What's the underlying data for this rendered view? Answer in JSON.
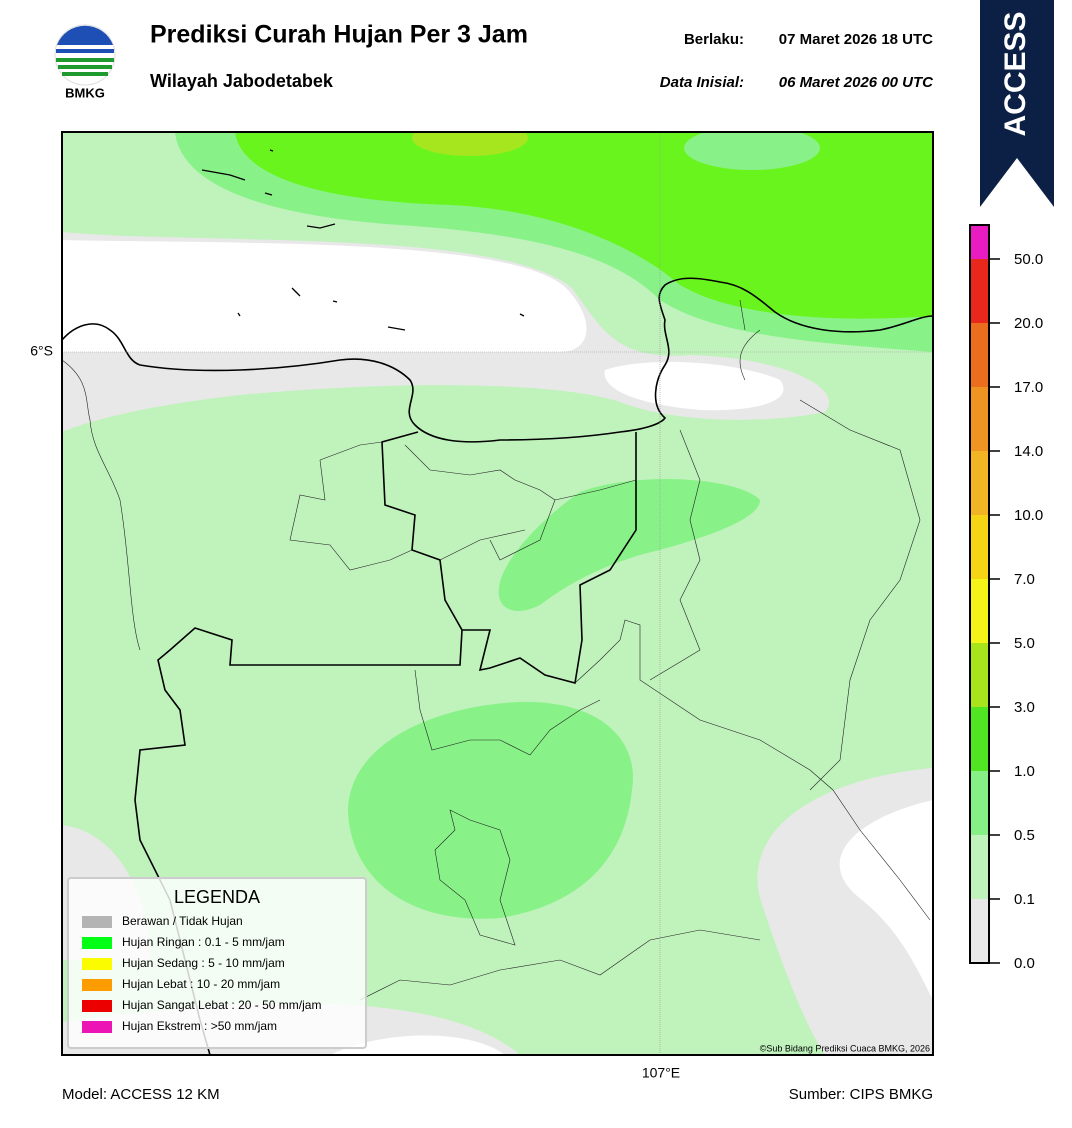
{
  "header": {
    "logo_text": "BMKG",
    "title": "Prediksi Curah Hujan Per 3 Jam",
    "subtitle": "Wilayah Jabodetabek",
    "valid_label": "Berlaku:",
    "valid_value": "07 Maret 2026 18 UTC",
    "init_label": "Data Inisial:",
    "init_value": "06 Maret 2026 00 UTC"
  },
  "badge": "ACCESS",
  "map": {
    "lat_label": "6°S",
    "lon_label": "107°E",
    "credit": "©Sub Bidang Prediksi Cuaca BMKG, 2026"
  },
  "legend": {
    "title": "LEGENDA",
    "items": [
      {
        "label": "Berawan / Tidak Hujan",
        "color": "#b4b4b4"
      },
      {
        "label": "Hujan Ringan : 0.1 - 5 mm/jam",
        "color": "#00ff14"
      },
      {
        "label": "Hujan Sedang : 5 - 10 mm/jam",
        "color": "#fcfc00"
      },
      {
        "label": "Hujan Lebat : 10 - 20 mm/jam",
        "color": "#fc9c00"
      },
      {
        "label": "Hujan Sangat Lebat : 20 - 50 mm/jam",
        "color": "#ec0000"
      },
      {
        "label": "Hujan Ekstrem : >50 mm/jam",
        "color": "#ec14b4"
      }
    ]
  },
  "colorbar": {
    "labels": [
      "0.0",
      "0.1",
      "0.5",
      "1.0",
      "3.0",
      "5.0",
      "7.0",
      "10.0",
      "14.0",
      "17.0",
      "20.0",
      "50.0"
    ],
    "colors": [
      "#e8e8e8",
      "#c0f2bc",
      "#86f086",
      "#50e422",
      "#a8e41c",
      "#f4f418",
      "#f4d414",
      "#f0b424",
      "#ee9422",
      "#ea6e1e",
      "#e8281c",
      "#e81cc0"
    ]
  },
  "footer": {
    "model": "Model: ACCESS 12 KM",
    "source": "Sumber: CIPS BMKG"
  }
}
